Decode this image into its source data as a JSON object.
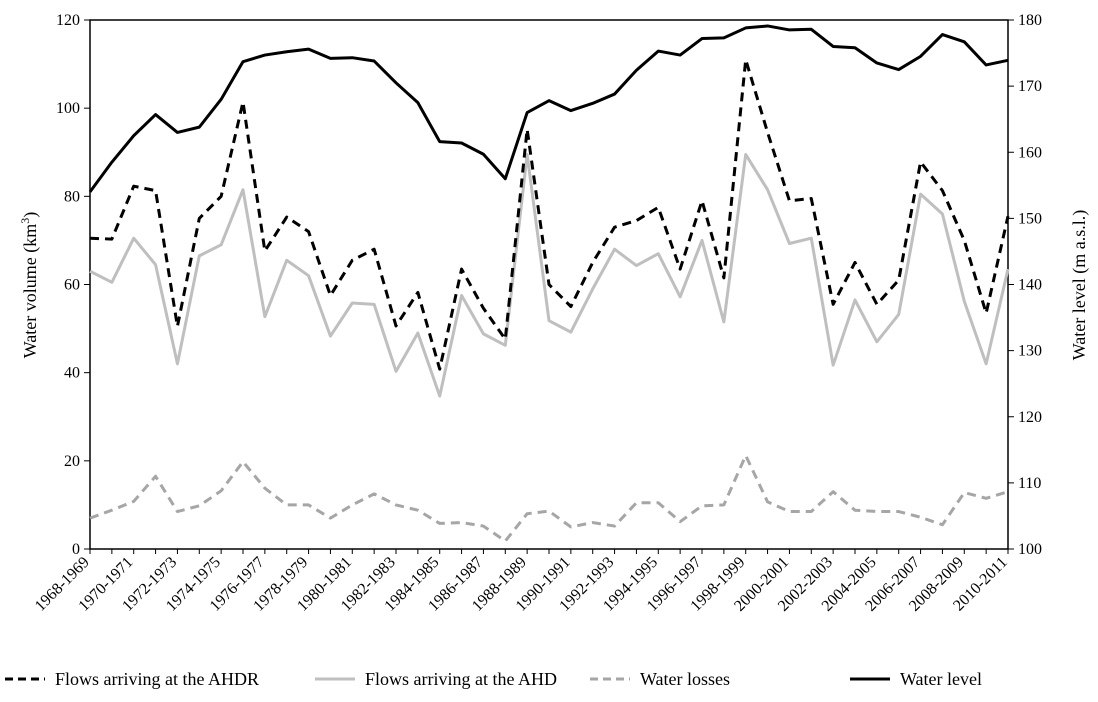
{
  "chart_data": {
    "type": "line",
    "categories": [
      "1968-1969",
      "1969-1970",
      "1970-1971",
      "1971-1972",
      "1972-1973",
      "1973-1974",
      "1974-1975",
      "1975-1976",
      "1976-1977",
      "1977-1978",
      "1978-1979",
      "1979-1980",
      "1980-1981",
      "1981-1982",
      "1982-1983",
      "1983-1984",
      "1984-1985",
      "1985-1986",
      "1986-1987",
      "1987-1988",
      "1988-1989",
      "1989-1990",
      "1990-1991",
      "1991-1992",
      "1992-1993",
      "1993-1994",
      "1994-1995",
      "1995-1996",
      "1996-1997",
      "1997-1998",
      "1998-1999",
      "1999-2000",
      "2000-2001",
      "2001-2002",
      "2002-2003",
      "2003-2004",
      "2004-2005",
      "2005-2006",
      "2006-2007",
      "2007-2008",
      "2008-2009",
      "2009-2010",
      "2010-2011"
    ],
    "x_tick_labels": [
      "1968-1969",
      "1970-1971",
      "1972-1973",
      "1974-1975",
      "1976-1977",
      "1978-1979",
      "1980-1981",
      "1982-1983",
      "1984-1985",
      "1986-1987",
      "1988-1989",
      "1990-1991",
      "1992-1993",
      "1994-1995",
      "1996-1997",
      "1998-1999",
      "2000-2001",
      "2002-2003",
      "2004-2005",
      "2006-2007",
      "2008-2009",
      "2010-2011"
    ],
    "ylabel": "Water  volume (km³)",
    "ylabel_main": "Water  volume (km",
    "ylabel_sup": "3",
    "ylabel_tail": ")",
    "y2label": "Water  level (m a.s.l.)",
    "ylim": [
      0,
      120
    ],
    "yticks": [
      0,
      20,
      40,
      60,
      80,
      100,
      120
    ],
    "y2lim": [
      100,
      180
    ],
    "y2ticks": [
      100,
      110,
      120,
      130,
      140,
      150,
      160,
      170,
      180
    ],
    "grid": false,
    "legend_position": "bottom",
    "series": [
      {
        "name": "Flows arriving at the AHDR",
        "axis": "left",
        "color": "#000000",
        "dash": "dashed",
        "values": [
          70.5,
          70.3,
          82.3,
          81.3,
          50.5,
          75.0,
          80.0,
          101.4,
          67.6,
          75.3,
          72.0,
          57.5,
          65.5,
          68.0,
          50.6,
          58.2,
          40.8,
          63.5,
          54.6,
          47.6,
          95.2,
          60.0,
          55.0,
          65.0,
          73.0,
          74.5,
          77.5,
          63.5,
          79.0,
          61.5,
          111.0,
          94.5,
          79.0,
          79.5,
          55.5,
          65.0,
          55.5,
          61.0,
          87.8,
          81.3,
          70.0,
          53.5,
          75.5
        ]
      },
      {
        "name": "Flows arriving at the AHD",
        "axis": "left",
        "color": "#bfbfbf",
        "dash": "solid",
        "values": [
          63.0,
          60.5,
          70.5,
          64.5,
          42.0,
          66.5,
          69.0,
          81.5,
          52.7,
          65.5,
          62.0,
          48.3,
          55.8,
          55.5,
          40.3,
          49.0,
          34.7,
          57.5,
          48.8,
          46.2,
          89.5,
          51.8,
          49.2,
          59.0,
          68.0,
          64.3,
          67.0,
          57.2,
          70.0,
          51.5,
          89.5,
          81.5,
          69.3,
          70.5,
          41.7,
          56.5,
          47.0,
          53.2,
          80.5,
          76.0,
          56.2,
          42.0,
          63.5
        ]
      },
      {
        "name": "Water losses",
        "axis": "left",
        "color": "#a6a6a6",
        "dash": "dashed",
        "values": [
          7.0,
          8.8,
          10.8,
          16.5,
          8.5,
          9.8,
          13.2,
          19.8,
          13.8,
          10.0,
          10.0,
          7.0,
          10.0,
          12.5,
          10.0,
          8.8,
          5.8,
          6.0,
          5.2,
          1.8,
          8.0,
          8.6,
          5.0,
          6.0,
          5.2,
          10.5,
          10.5,
          6.2,
          9.8,
          10.0,
          21.2,
          10.7,
          8.5,
          8.5,
          13.0,
          8.8,
          8.5,
          8.5,
          7.2,
          5.5,
          12.8,
          11.5,
          13.0
        ]
      },
      {
        "name": "Water level",
        "axis": "right",
        "color": "#000000",
        "dash": "solid",
        "values": [
          154.0,
          158.5,
          162.5,
          165.7,
          163.0,
          163.8,
          168.0,
          173.7,
          174.7,
          175.2,
          175.6,
          174.2,
          174.3,
          173.8,
          170.5,
          167.5,
          161.6,
          161.4,
          159.7,
          156.0,
          166.0,
          167.8,
          166.3,
          167.4,
          168.8,
          172.4,
          175.3,
          174.7,
          177.2,
          177.3,
          178.8,
          179.1,
          178.5,
          178.6,
          176.0,
          175.8,
          173.5,
          172.5,
          174.5,
          177.8,
          176.7,
          173.2,
          173.9
        ]
      }
    ]
  }
}
